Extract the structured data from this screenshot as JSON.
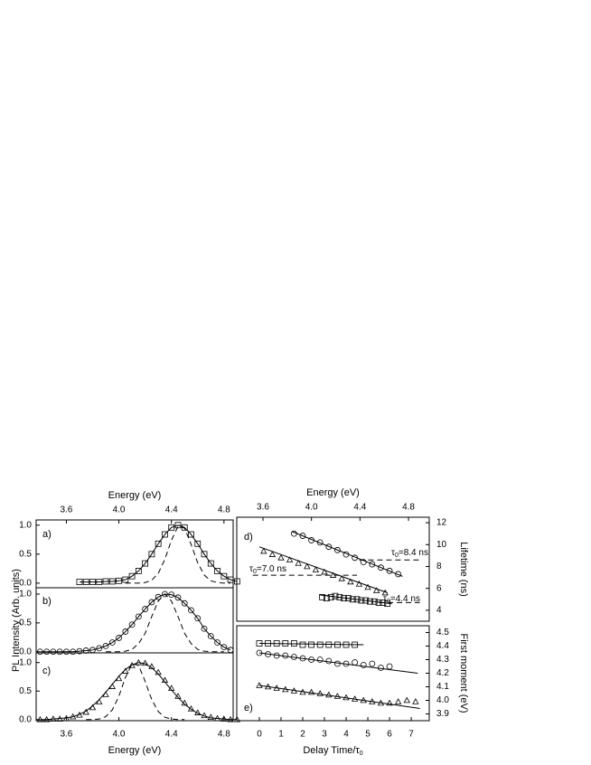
{
  "chart_data": [
    {
      "type": "line",
      "label": "a)",
      "x_top_label": "Energy (eV)",
      "ylabel": "PL Intensity (Arb. units)",
      "xlim": [
        3.37,
        4.87
      ],
      "ylim": [
        -0.08,
        1.09
      ],
      "xticks_top": [
        3.6,
        {
          "value": 4,
          "label": "4.0"
        },
        4.4,
        4.8
      ],
      "yticks": [
        {
          "value": 0,
          "label": "0.0"
        },
        0.5,
        {
          "value": 1,
          "label": "1.0"
        }
      ],
      "series": [
        {
          "marker": "square",
          "line": "none",
          "color": "#000000",
          "x": [
            3.7,
            3.75,
            3.8,
            3.85,
            3.9,
            3.95,
            4.0,
            4.05,
            4.1,
            4.15,
            4.2,
            4.25,
            4.3,
            4.35,
            4.4,
            4.45,
            4.5,
            4.55,
            4.6,
            4.65,
            4.7,
            4.75,
            4.8,
            4.85,
            4.9
          ],
          "values": [
            0.02,
            0.02,
            0.02,
            0.02,
            0.03,
            0.03,
            0.04,
            0.06,
            0.12,
            0.21,
            0.34,
            0.5,
            0.68,
            0.84,
            0.96,
            1,
            0.96,
            0.84,
            0.68,
            0.5,
            0.34,
            0.21,
            0.12,
            0.06,
            0.03
          ]
        },
        {
          "marker": "none",
          "line": "solid",
          "color": "#000000",
          "x": [
            3.7,
            3.75,
            3.8,
            3.85,
            3.9,
            3.95,
            4.0,
            4.05,
            4.1,
            4.15,
            4.2,
            4.25,
            4.3,
            4.35,
            4.4,
            4.45,
            4.5,
            4.55,
            4.6,
            4.65,
            4.7,
            4.75,
            4.8,
            4.85,
            4.9
          ],
          "values": [
            0.02,
            0.02,
            0.02,
            0.02,
            0.03,
            0.03,
            0.04,
            0.06,
            0.12,
            0.21,
            0.34,
            0.5,
            0.68,
            0.84,
            0.96,
            1,
            0.96,
            0.84,
            0.68,
            0.5,
            0.34,
            0.21,
            0.12,
            0.06,
            0.03
          ]
        },
        {
          "marker": "none",
          "line": "dashed",
          "color": "#000000",
          "x": [
            4.05,
            4.1,
            4.15,
            4.2,
            4.25,
            4.3,
            4.35,
            4.4,
            4.45,
            4.5,
            4.55,
            4.6,
            4.65,
            4.7,
            4.75,
            4.8,
            4.85
          ],
          "values": [
            0,
            0,
            0,
            0.01,
            0.05,
            0.17,
            0.41,
            0.74,
            0.98,
            0.95,
            0.67,
            0.35,
            0.14,
            0.04,
            0.01,
            0,
            0
          ]
        }
      ]
    },
    {
      "type": "line",
      "label": "b)",
      "xlim": [
        3.37,
        4.87
      ],
      "ylim": [
        -0.02,
        1.11
      ],
      "yticks": [
        {
          "value": 0,
          "label": "0.0"
        },
        0.5,
        {
          "value": 1,
          "label": "1.0"
        }
      ],
      "series": [
        {
          "marker": "circle",
          "line": "none",
          "color": "#000000",
          "x": [
            3.4,
            3.45,
            3.5,
            3.55,
            3.6,
            3.65,
            3.7,
            3.75,
            3.8,
            3.85,
            3.9,
            3.95,
            4.0,
            4.05,
            4.1,
            4.15,
            4.2,
            4.25,
            4.3,
            4.35,
            4.4,
            4.45,
            4.5,
            4.55,
            4.6,
            4.65,
            4.7,
            4.75,
            4.8,
            4.85
          ],
          "values": [
            0,
            0,
            0,
            0,
            0,
            0,
            0.01,
            0.02,
            0.03,
            0.06,
            0.1,
            0.16,
            0.24,
            0.35,
            0.47,
            0.61,
            0.74,
            0.86,
            0.95,
            1,
            0.99,
            0.94,
            0.84,
            0.72,
            0.58,
            0.4,
            0.27,
            0.16,
            0.08,
            0.03
          ]
        },
        {
          "marker": "none",
          "line": "solid",
          "color": "#000000",
          "x": [
            3.4,
            3.45,
            3.5,
            3.55,
            3.6,
            3.65,
            3.7,
            3.75,
            3.8,
            3.85,
            3.9,
            3.95,
            4.0,
            4.05,
            4.1,
            4.15,
            4.2,
            4.25,
            4.3,
            4.35,
            4.4,
            4.45,
            4.5,
            4.55,
            4.6,
            4.65,
            4.7,
            4.75,
            4.8,
            4.85
          ],
          "values": [
            0,
            0,
            0,
            0,
            0,
            0,
            0.01,
            0.02,
            0.03,
            0.06,
            0.1,
            0.16,
            0.24,
            0.35,
            0.47,
            0.61,
            0.74,
            0.86,
            0.95,
            1,
            0.99,
            0.94,
            0.84,
            0.72,
            0.58,
            0.4,
            0.27,
            0.16,
            0.08,
            0.03
          ]
        },
        {
          "marker": "none",
          "line": "dashed",
          "color": "#000000",
          "x": [
            3.9,
            3.95,
            4.0,
            4.05,
            4.1,
            4.15,
            4.2,
            4.25,
            4.3,
            4.35,
            4.4,
            4.45,
            4.5,
            4.55,
            4.6,
            4.65,
            4.7,
            4.75,
            4.8
          ],
          "values": [
            0,
            0,
            0,
            0.01,
            0.04,
            0.14,
            0.32,
            0.61,
            0.88,
            1,
            0.88,
            0.61,
            0.32,
            0.14,
            0.04,
            0.01,
            0,
            0,
            0
          ]
        }
      ]
    },
    {
      "type": "line",
      "label": "c)",
      "xlabel": "Energy (eV)",
      "xlim": [
        3.37,
        4.87
      ],
      "ylim": [
        -0.02,
        1.17
      ],
      "xticks": [
        3.6,
        {
          "value": 4,
          "label": "4.0"
        },
        4.4,
        4.8
      ],
      "yticks": [
        {
          "value": 0,
          "label": "0.0"
        },
        0.5,
        {
          "value": 1,
          "label": "1.0"
        }
      ],
      "series": [
        {
          "marker": "triangle",
          "line": "none",
          "color": "#000000",
          "x": [
            3.4,
            3.45,
            3.5,
            3.55,
            3.6,
            3.65,
            3.7,
            3.75,
            3.8,
            3.85,
            3.9,
            3.95,
            4.0,
            4.05,
            4.1,
            4.15,
            4.2,
            4.25,
            4.3,
            4.35,
            4.4,
            4.45,
            4.5,
            4.55,
            4.6,
            4.65,
            4.7,
            4.75,
            4.8,
            4.85,
            4.9
          ],
          "values": [
            0,
            0,
            0.01,
            0.01,
            0.02,
            0.05,
            0.08,
            0.13,
            0.21,
            0.31,
            0.44,
            0.58,
            0.72,
            0.85,
            0.95,
            1,
            0.99,
            0.93,
            0.83,
            0.69,
            0.55,
            0.41,
            0.29,
            0.19,
            0.12,
            0.07,
            0.04,
            0.02,
            0.01,
            0,
            0
          ]
        },
        {
          "marker": "none",
          "line": "solid",
          "color": "#000000",
          "x": [
            3.4,
            3.45,
            3.5,
            3.55,
            3.6,
            3.65,
            3.7,
            3.75,
            3.8,
            3.85,
            3.9,
            3.95,
            4.0,
            4.05,
            4.1,
            4.15,
            4.2,
            4.25,
            4.3,
            4.35,
            4.4,
            4.45,
            4.5,
            4.55,
            4.6,
            4.65,
            4.7,
            4.75,
            4.8,
            4.85,
            4.9
          ],
          "values": [
            0,
            0,
            0.01,
            0.02,
            0.03,
            0.05,
            0.09,
            0.15,
            0.24,
            0.35,
            0.48,
            0.62,
            0.76,
            0.88,
            0.96,
            1,
            0.98,
            0.91,
            0.8,
            0.66,
            0.52,
            0.39,
            0.27,
            0.18,
            0.11,
            0.06,
            0.03,
            0.02,
            0.01,
            0,
            0
          ]
        },
        {
          "marker": "none",
          "line": "dashed",
          "color": "#000000",
          "x": [
            3.75,
            3.8,
            3.85,
            3.9,
            3.95,
            4.0,
            4.05,
            4.1,
            4.15,
            4.2,
            4.25,
            4.3,
            4.35,
            4.4,
            4.45,
            4.5
          ],
          "values": [
            0,
            0,
            0.01,
            0.05,
            0.17,
            0.41,
            0.74,
            0.98,
            0.95,
            0.67,
            0.35,
            0.14,
            0.04,
            0.01,
            0,
            0
          ]
        }
      ]
    },
    {
      "type": "line",
      "label": "d)",
      "x_top_label": "Energy (eV)",
      "ylabel": "Lifetime (ns)",
      "xlim": [
        -1.04,
        7.83
      ],
      "ylim": [
        3.0,
        12.5
      ],
      "x_top_lim": [
        3.384,
        4.971
      ],
      "xticks_top": [
        3.6,
        {
          "value": 4,
          "label": "4.0"
        },
        4.4,
        4.8
      ],
      "yticks": [
        4,
        6,
        8,
        10,
        12
      ],
      "annotations": [
        [
          "τ",
          "0",
          "=8.4 ns"
        ],
        [
          "τ",
          "0",
          "=7.0 ns"
        ],
        [
          "τ",
          "0",
          "=4.4 ns"
        ]
      ],
      "series": [
        {
          "marker": "circle",
          "line": "none",
          "color": "#000000",
          "x": [
            1.6,
            2.0,
            2.4,
            2.8,
            3.2,
            3.6,
            4.0,
            4.4,
            4.8,
            5.2,
            5.6,
            6.0,
            6.4
          ],
          "values": [
            11.0,
            10.8,
            10.4,
            10.2,
            9.8,
            9.5,
            9.1,
            8.8,
            8.4,
            8.2,
            7.9,
            7.6,
            7.3
          ]
        },
        {
          "marker": "none",
          "line": "solid",
          "color": "#000000",
          "x": [
            1.5,
            6.6
          ],
          "values": [
            11.2,
            7.1
          ]
        },
        {
          "marker": "triangle",
          "line": "none",
          "color": "#000000",
          "x": [
            0.2,
            0.6,
            1.0,
            1.4,
            1.8,
            2.2,
            2.6,
            3.0,
            3.4,
            3.8,
            4.2,
            4.6,
            5.0,
            5.4,
            5.8
          ],
          "values": [
            9.4,
            9.1,
            8.8,
            8.6,
            8.3,
            8.0,
            7.7,
            7.5,
            7.2,
            6.9,
            6.6,
            6.4,
            6.1,
            5.8,
            5.6
          ]
        },
        {
          "marker": "none",
          "line": "solid",
          "color": "#000000",
          "x": [
            0,
            5.9
          ],
          "values": [
            9.8,
            5.6
          ]
        },
        {
          "marker": "square",
          "line": "none",
          "color": "#000000",
          "x": [
            2.9,
            3.1,
            3.3,
            3.5,
            3.7,
            3.9,
            4.1,
            4.3,
            4.5,
            4.7,
            4.9,
            5.1,
            5.3,
            5.5,
            5.7,
            5.9
          ],
          "values": [
            5.2,
            5.1,
            5.2,
            5.3,
            5.2,
            5.1,
            5.1,
            5.0,
            5.0,
            4.9,
            4.9,
            4.8,
            4.8,
            4.7,
            4.7,
            4.6
          ]
        },
        {
          "marker": "none",
          "line": "solid",
          "color": "#000000",
          "x": [
            2.8,
            6.1
          ],
          "values": [
            5.4,
            4.6
          ]
        },
        {
          "marker": "none",
          "line": "dashed",
          "color": "#000000",
          "x": [
            4.6,
            7.4
          ],
          "values": [
            8.6,
            8.6
          ]
        },
        {
          "marker": "none",
          "line": "dashed",
          "color": "#000000",
          "x": [
            -0.3,
            4.5
          ],
          "values": [
            7.2,
            7.2
          ]
        },
        {
          "marker": "none",
          "line": "dashed",
          "color": "#000000",
          "x": [
            5.5,
            7.4
          ],
          "values": [
            4.7,
            4.7
          ]
        }
      ]
    },
    {
      "type": "line",
      "label": "e)",
      "xlabel": [
        "Delay Time/τ",
        "0"
      ],
      "ylabel": "First moment (eV)",
      "xlim": [
        -1.04,
        7.83
      ],
      "ylim": [
        3.85,
        4.55
      ],
      "xticks": [
        0,
        1,
        2,
        3,
        4,
        5,
        6,
        7
      ],
      "yticks": [
        3.9,
        {
          "value": 4,
          "label": "4.0"
        },
        4.1,
        4.2,
        4.3,
        4.4,
        4.5
      ],
      "series": [
        {
          "marker": "square",
          "line": "none",
          "color": "#000000",
          "x": [
            0,
            0.4,
            0.8,
            1.2,
            1.6,
            2.0,
            2.4,
            2.8,
            3.2,
            3.6,
            4.0,
            4.4
          ],
          "values": [
            4.42,
            4.42,
            4.42,
            4.42,
            4.42,
            4.41,
            4.41,
            4.41,
            4.41,
            4.41,
            4.41,
            4.41
          ]
        },
        {
          "marker": "none",
          "line": "solid",
          "color": "#000000",
          "x": [
            0,
            4.8
          ],
          "values": [
            4.42,
            4.41
          ]
        },
        {
          "marker": "circle",
          "line": "none",
          "color": "#000000",
          "x": [
            0,
            0.4,
            0.8,
            1.2,
            1.6,
            2.0,
            2.4,
            2.8,
            3.2,
            3.6,
            4.0,
            4.4,
            4.8,
            5.2,
            5.6,
            6.0
          ],
          "values": [
            4.35,
            4.34,
            4.33,
            4.33,
            4.32,
            4.31,
            4.3,
            4.3,
            4.29,
            4.27,
            4.27,
            4.28,
            4.26,
            4.27,
            4.24,
            4.25
          ]
        },
        {
          "marker": "none",
          "line": "solid",
          "color": "#000000",
          "x": [
            0,
            7.3
          ],
          "values": [
            4.35,
            4.2
          ]
        },
        {
          "marker": "triangle",
          "line": "none",
          "color": "#000000",
          "x": [
            0,
            0.4,
            0.8,
            1.2,
            1.6,
            2.0,
            2.4,
            2.8,
            3.2,
            3.6,
            4.0,
            4.4,
            4.8,
            5.2,
            5.6,
            6.0,
            6.4,
            6.8,
            7.2
          ],
          "values": [
            4.11,
            4.1,
            4.09,
            4.08,
            4.07,
            4.06,
            4.06,
            4.05,
            4.04,
            4.03,
            4.02,
            4.01,
            4.0,
            3.99,
            3.98,
            3.98,
            3.99,
            4.0,
            3.99
          ]
        },
        {
          "marker": "none",
          "line": "solid",
          "color": "#000000",
          "x": [
            0,
            7.4
          ],
          "values": [
            4.11,
            3.94
          ]
        }
      ]
    }
  ]
}
